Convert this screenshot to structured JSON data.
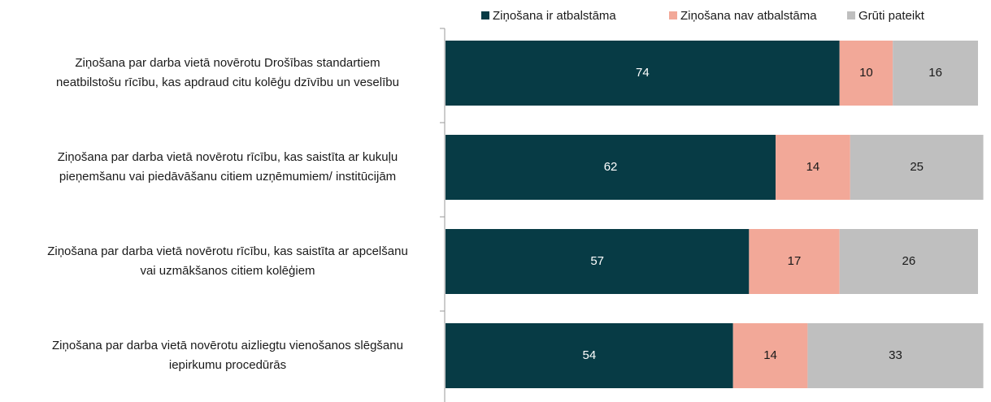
{
  "chart_data": {
    "type": "stacked-bar-horizontal",
    "categories": [
      [
        "Ziņošana par darba vietā novērotu Drošības standartiem",
        "neatbilstošu rīcību, kas apdraud citu kolēģu dzīvību un veselību"
      ],
      [
        "Ziņošana par darba vietā novērotu rīcību, kas saistīta ar kukuļu",
        "pieņemšanu vai piedāvāšanu citiem uzņēmumiem/ institūcijām"
      ],
      [
        "Ziņošana par darba vietā novērotu rīcību, kas saistīta ar apcelšanu",
        "vai uzmākšanos citiem kolēģiem"
      ],
      [
        "Ziņošana par darba vietā novērotu aizliegtu vienošanos slēgšanu",
        "iepirkumu procedūrās"
      ]
    ],
    "series": [
      {
        "name": "Ziņošana ir atbalstāma",
        "color": "#073b45",
        "values": [
          74,
          62,
          57,
          54
        ]
      },
      {
        "name": "Ziņošana nav atbalstāma",
        "color": "#f2a898",
        "values": [
          10,
          14,
          17,
          14
        ]
      },
      {
        "name": "Grūti pateikt",
        "color": "#bfbfbf",
        "values": [
          16,
          25,
          26,
          33
        ]
      }
    ],
    "xlim": [
      0,
      100
    ],
    "legend": "top"
  }
}
